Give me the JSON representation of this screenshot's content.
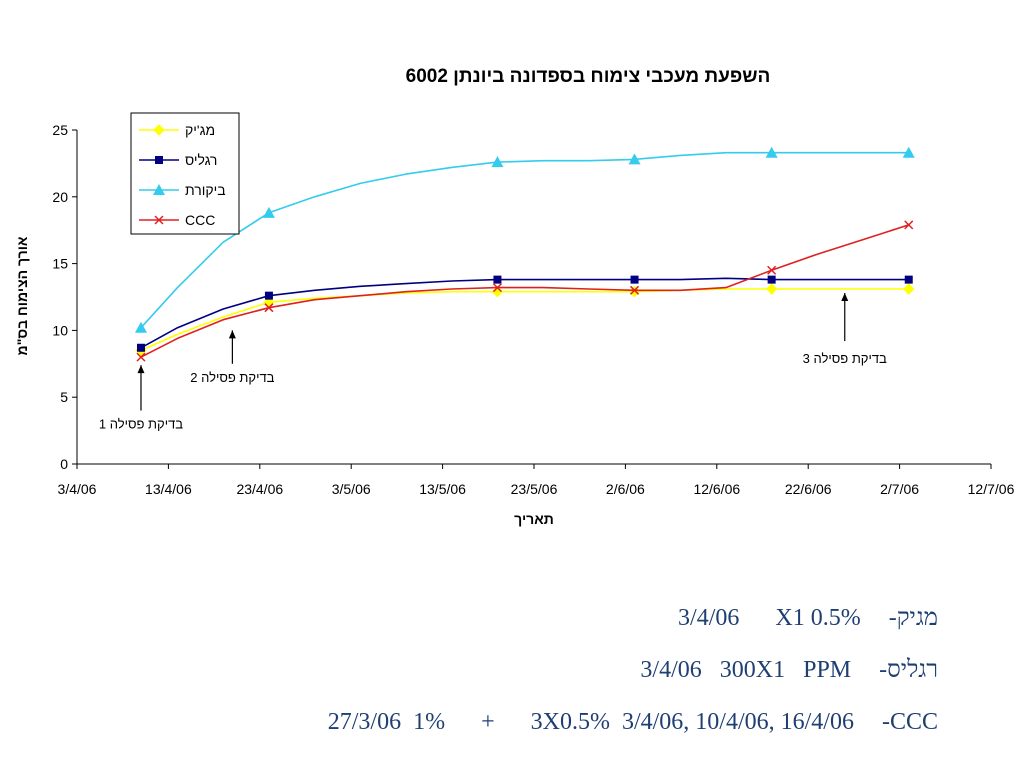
{
  "chart_data": {
    "type": "line",
    "title": "השפעת  מעכבי צימוח בספדונה ביונתן 6002",
    "xlabel": "תאריך",
    "ylabel": "אורך הצימוח בס\"מ",
    "ylim": [
      0,
      25
    ],
    "y_ticks": [
      "0",
      "5",
      "10",
      "15",
      "20",
      "25"
    ],
    "x_ticks": [
      "3/4/06",
      "13/4/06",
      "23/4/06",
      "3/5/06",
      "13/5/06",
      "23/5/06",
      "2/6/06",
      "12/6/06",
      "22/6/06",
      "2/7/06",
      "12/7/06"
    ],
    "xlim_days": [
      0,
      100
    ],
    "legend_position": "top-left",
    "series": [
      {
        "name": "מג'יק",
        "color": "#ffff00",
        "marker": "diamond",
        "x": [
          "10/4/06",
          "14/4/06",
          "19/4/06",
          "24/4/06",
          "29/4/06",
          "4/5/06",
          "9/5/06",
          "14/5/06",
          "19/5/06",
          "24/5/06",
          "29/5/06",
          "3/6/06",
          "8/6/06",
          "13/6/06",
          "18/6/06",
          "23/6/06",
          "28/6/06",
          "3/7/06"
        ],
        "values": [
          8.5,
          9.7,
          11.0,
          12.1,
          12.4,
          12.6,
          12.8,
          12.9,
          12.9,
          12.9,
          12.9,
          12.9,
          13.0,
          13.1,
          13.1,
          13.1,
          13.1,
          13.1
        ]
      },
      {
        "name": "רגליס",
        "color": "#000080",
        "marker": "square",
        "x": [
          "10/4/06",
          "14/4/06",
          "19/4/06",
          "24/4/06",
          "29/4/06",
          "4/5/06",
          "9/5/06",
          "14/5/06",
          "19/5/06",
          "24/5/06",
          "29/5/06",
          "3/6/06",
          "8/6/06",
          "13/6/06",
          "18/6/06",
          "23/6/06",
          "28/6/06",
          "3/7/06"
        ],
        "values": [
          8.7,
          10.2,
          11.6,
          12.6,
          13.0,
          13.3,
          13.5,
          13.7,
          13.8,
          13.8,
          13.8,
          13.8,
          13.8,
          13.9,
          13.8,
          13.8,
          13.8,
          13.8
        ]
      },
      {
        "name": "ביקורת",
        "color": "#33ccee",
        "marker": "triangle",
        "x": [
          "10/4/06",
          "14/4/06",
          "19/4/06",
          "24/4/06",
          "29/4/06",
          "4/5/06",
          "9/5/06",
          "14/5/06",
          "19/5/06",
          "24/5/06",
          "29/5/06",
          "3/6/06",
          "8/6/06",
          "13/6/06",
          "18/6/06",
          "23/6/06",
          "28/6/06",
          "3/7/06"
        ],
        "values": [
          10.2,
          13.2,
          16.6,
          18.8,
          20.0,
          21.0,
          21.7,
          22.2,
          22.6,
          22.7,
          22.7,
          22.8,
          23.1,
          23.3,
          23.3,
          23.3,
          23.3,
          23.3
        ]
      },
      {
        "name": "CCC",
        "color": "#e02020",
        "marker": "x",
        "x": [
          "10/4/06",
          "14/4/06",
          "19/4/06",
          "24/4/06",
          "29/4/06",
          "4/5/06",
          "9/5/06",
          "14/5/06",
          "19/5/06",
          "24/5/06",
          "29/5/06",
          "3/6/06",
          "8/6/06",
          "13/6/06",
          "18/6/06",
          "23/6/06",
          "28/6/06",
          "3/7/06"
        ],
        "values": [
          8.0,
          9.4,
          10.8,
          11.7,
          12.3,
          12.6,
          12.9,
          13.1,
          13.2,
          13.2,
          13.1,
          13.0,
          13.0,
          13.2,
          14.5,
          15.7,
          16.8,
          17.9
        ]
      }
    ],
    "annotations": [
      {
        "text": "בדיקת פסילה 1",
        "x": "10/4/06",
        "y_from": 4.0,
        "y_to": 7.4
      },
      {
        "text": "בדיקת פסילה  2",
        "x": "20/4/06",
        "y_from": 7.5,
        "y_to": 10.0
      },
      {
        "text": "בדיקת פסילה 3",
        "x": "26/6/06",
        "y_from": 9.2,
        "y_to": 12.8
      }
    ]
  },
  "notes": [
    {
      "label": "מגיק-",
      "detail": "3/4/06      X1 0.5%"
    },
    {
      "label": "רגליס-",
      "detail": "3/4/06   300X1   PPM"
    },
    {
      "label": "CCC-",
      "detail": "27/3/06  1%      +      3X0.5%  3/4/06, 10/4/06, 16/4/06"
    }
  ]
}
